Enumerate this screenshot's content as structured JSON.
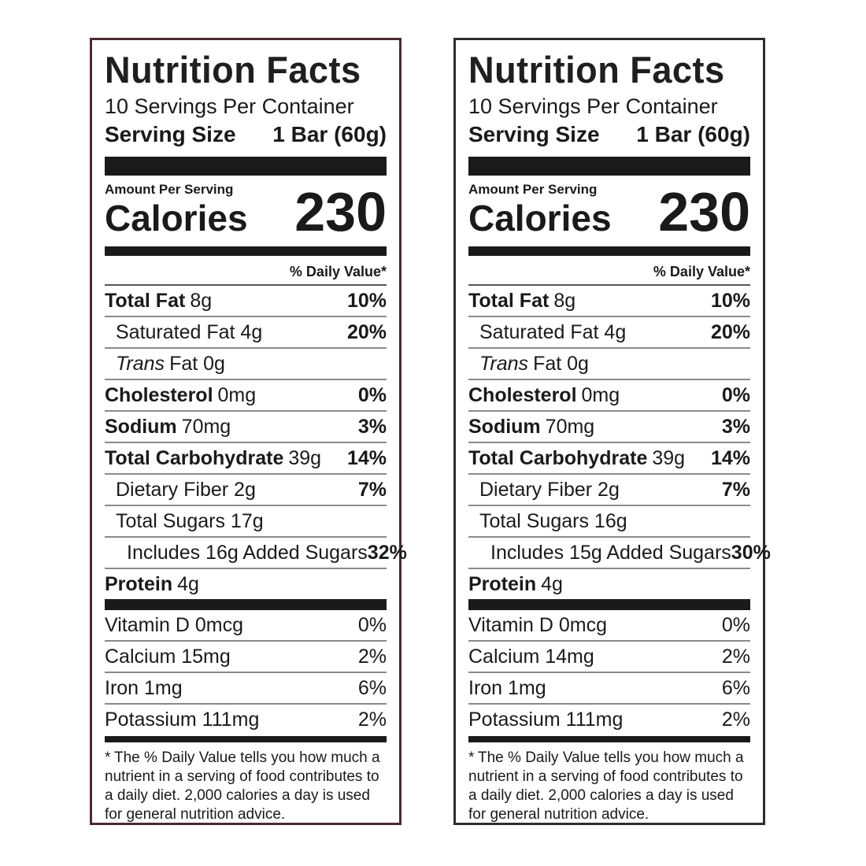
{
  "labels": [
    {
      "title": "Nutrition Facts",
      "servings_per_container": "10 Servings Per Container",
      "serving_size_label": "Serving Size",
      "serving_size_value": "1 Bar (60g)",
      "amount_per_serving": "Amount Per Serving",
      "calories_label": "Calories",
      "calories_value": "230",
      "daily_value_header": "% Daily Value*",
      "total_fat": {
        "label": "Total Fat",
        "amount": "8g",
        "dv": "10%"
      },
      "saturated_fat": {
        "label": "Saturated Fat 4g",
        "dv": "20%"
      },
      "trans_fat": {
        "italic": "Trans",
        "rest": "Fat 0g"
      },
      "cholesterol": {
        "label": "Cholesterol",
        "amount": "0mg",
        "dv": "0%"
      },
      "sodium": {
        "label": "Sodium",
        "amount": "70mg",
        "dv": "3%"
      },
      "total_carbohydrate": {
        "label": "Total Carbohydrate",
        "amount": "39g",
        "dv": "14%"
      },
      "dietary_fiber": {
        "label": "Dietary Fiber 2g",
        "dv": "7%"
      },
      "total_sugars": {
        "label": "Total Sugars 17g"
      },
      "added_sugars": {
        "label": "Includes 16g Added Sugars",
        "dv": "32%"
      },
      "protein": {
        "label": "Protein",
        "amount": "4g"
      },
      "vitamin_d": {
        "label": "Vitamin D 0mcg",
        "dv": "0%"
      },
      "calcium": {
        "label": "Calcium 15mg",
        "dv": "2%"
      },
      "iron": {
        "label": "Iron 1mg",
        "dv": "6%"
      },
      "potassium": {
        "label": "Potassium 111mg",
        "dv": "2%"
      },
      "footnote": "The % Daily Value tells you how much a nutrient in a serving of food contributes to a daily diet. 2,000 calories a day is used for general nutrition advice."
    },
    {
      "title": "Nutrition Facts",
      "servings_per_container": "10 Servings Per Container",
      "serving_size_label": "Serving Size",
      "serving_size_value": "1 Bar (60g)",
      "amount_per_serving": "Amount Per Serving",
      "calories_label": "Calories",
      "calories_value": "230",
      "daily_value_header": "% Daily Value*",
      "total_fat": {
        "label": "Total Fat",
        "amount": "8g",
        "dv": "10%"
      },
      "saturated_fat": {
        "label": "Saturated Fat 4g",
        "dv": "20%"
      },
      "trans_fat": {
        "italic": "Trans",
        "rest": "Fat 0g"
      },
      "cholesterol": {
        "label": "Cholesterol",
        "amount": "0mg",
        "dv": "0%"
      },
      "sodium": {
        "label": "Sodium",
        "amount": "70mg",
        "dv": "3%"
      },
      "total_carbohydrate": {
        "label": "Total Carbohydrate",
        "amount": "39g",
        "dv": "14%"
      },
      "dietary_fiber": {
        "label": "Dietary Fiber 2g",
        "dv": "7%"
      },
      "total_sugars": {
        "label": "Total Sugars 16g"
      },
      "added_sugars": {
        "label": "Includes 15g Added Sugars",
        "dv": "30%"
      },
      "protein": {
        "label": "Protein",
        "amount": "4g"
      },
      "vitamin_d": {
        "label": "Vitamin D 0mcg",
        "dv": "0%"
      },
      "calcium": {
        "label": "Calcium 14mg",
        "dv": "2%"
      },
      "iron": {
        "label": "Iron 1mg",
        "dv": "6%"
      },
      "potassium": {
        "label": "Potassium 111mg",
        "dv": "2%"
      },
      "footnote": "The % Daily Value tells you how much a nutrient in a serving of food contributes to a daily diet. 2,000 calories a day is used for general nutrition advice."
    }
  ]
}
